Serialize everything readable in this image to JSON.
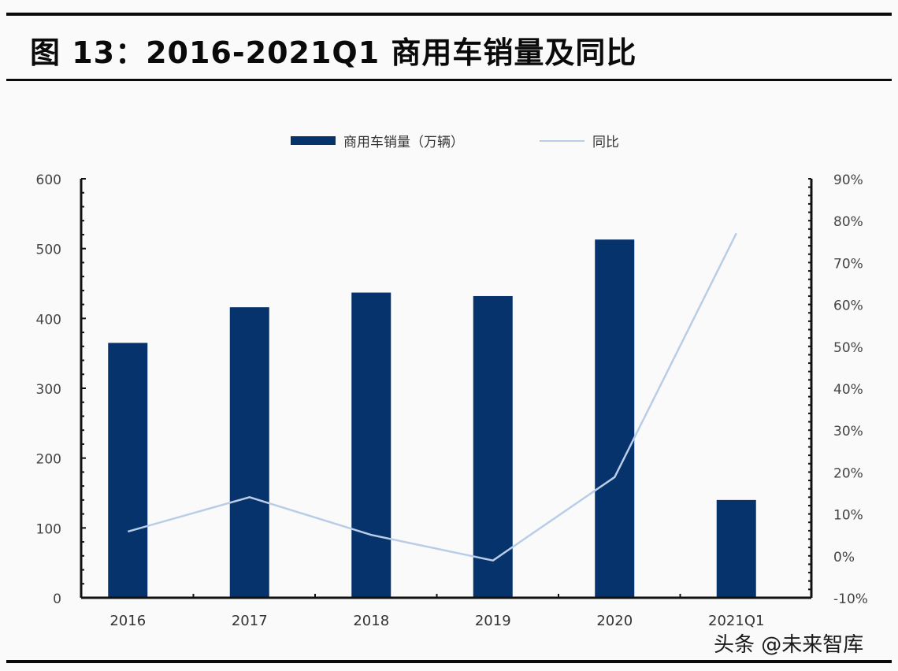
{
  "header": {
    "title": "图 13：2016-2021Q1 商用车销量及同比"
  },
  "watermark": "头条 @未来智库",
  "chart_data": {
    "type": "bar+line",
    "title": "图 13：2016-2021Q1 商用车销量及同比",
    "categories": [
      "2016",
      "2017",
      "2018",
      "2019",
      "2020",
      "2021Q1"
    ],
    "series": [
      {
        "name": "商用车销量（万辆）",
        "type": "bar",
        "axis": "left",
        "color": "#06336b",
        "values": [
          365,
          416,
          437,
          432,
          513,
          140
        ]
      },
      {
        "name": "同比",
        "type": "line",
        "axis": "right",
        "color": "#b9cde6",
        "values": [
          0.058,
          0.14,
          0.05,
          -0.011,
          0.188,
          0.77
        ]
      }
    ],
    "left_axis": {
      "ticks": [
        "0",
        "100",
        "200",
        "300",
        "400",
        "500",
        "600"
      ],
      "ylim": [
        0,
        600
      ]
    },
    "right_axis": {
      "ticks": [
        "-10%",
        "0%",
        "10%",
        "20%",
        "30%",
        "40%",
        "50%",
        "60%",
        "70%",
        "80%",
        "90%"
      ],
      "ylim": [
        -0.1,
        0.9
      ]
    },
    "legend": {
      "position": "top",
      "entries": [
        "商用车销量（万辆）",
        "同比"
      ]
    },
    "grid": false,
    "xlabel": "",
    "ylabel": ""
  }
}
